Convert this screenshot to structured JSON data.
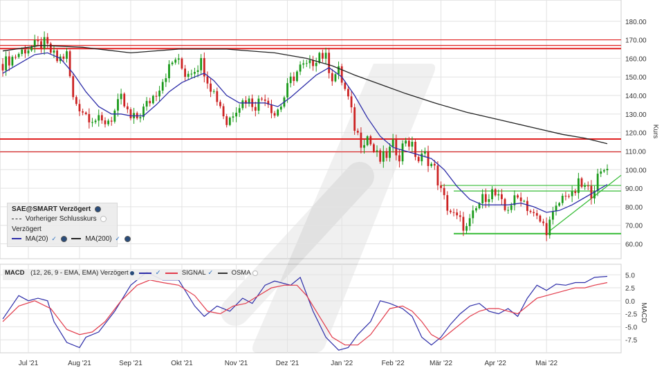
{
  "chart_data": [
    {
      "type": "candlestick",
      "title": "SAE@SMART Verzögert",
      "ylabel": "Kurs",
      "ylim": [
        52,
        187
      ],
      "yticks": [
        "180.00",
        "170.00",
        "160.00",
        "150.00",
        "140.00",
        "130.00",
        "120.00",
        "110.00",
        "100.00",
        "90.00",
        "80.00",
        "70.00",
        "60.00"
      ],
      "x_labels": [
        "Jul '21",
        "Aug '21",
        "Sep '21",
        "Okt '21",
        "Nov '21",
        "Dez '21",
        "Jan '22",
        "Feb '22",
        "Mär '22",
        "Apr '22",
        "Mai '22"
      ],
      "close_path": [
        [
          0,
          157
        ],
        [
          7,
          165
        ],
        [
          13,
          168
        ],
        [
          17,
          159
        ],
        [
          20,
          162
        ],
        [
          22,
          138
        ],
        [
          26,
          130
        ],
        [
          31,
          125
        ],
        [
          34,
          128
        ],
        [
          37,
          138
        ],
        [
          40,
          127
        ],
        [
          42,
          128
        ],
        [
          45,
          135
        ],
        [
          48,
          142
        ],
        [
          51,
          152
        ],
        [
          54,
          160
        ],
        [
          57,
          152
        ],
        [
          60,
          155
        ],
        [
          62,
          158
        ],
        [
          65,
          145
        ],
        [
          68,
          135
        ],
        [
          70,
          125
        ],
        [
          73,
          134
        ],
        [
          76,
          138
        ],
        [
          79,
          135
        ],
        [
          82,
          140
        ],
        [
          85,
          130
        ],
        [
          87,
          135
        ],
        [
          90,
          148
        ],
        [
          93,
          155
        ],
        [
          96,
          156
        ],
        [
          99,
          163
        ],
        [
          101,
          160
        ],
        [
          103,
          150
        ],
        [
          105,
          153
        ],
        [
          108,
          138
        ],
        [
          110,
          123
        ],
        [
          112,
          115
        ],
        [
          114,
          118
        ],
        [
          116,
          110
        ],
        [
          118,
          105
        ],
        [
          120,
          108
        ],
        [
          122,
          113
        ],
        [
          124,
          108
        ],
        [
          126,
          117
        ],
        [
          128,
          112
        ],
        [
          130,
          105
        ],
        [
          132,
          108
        ],
        [
          135,
          100
        ],
        [
          137,
          88
        ],
        [
          139,
          80
        ],
        [
          141,
          75
        ],
        [
          143,
          72
        ],
        [
          145,
          68
        ],
        [
          147,
          75
        ],
        [
          149,
          82
        ],
        [
          151,
          86
        ],
        [
          153,
          88
        ],
        [
          155,
          84
        ],
        [
          157,
          78
        ],
        [
          159,
          82
        ],
        [
          162,
          86
        ],
        [
          164,
          80
        ],
        [
          166,
          75
        ],
        [
          168,
          72
        ],
        [
          170,
          68
        ],
        [
          172,
          75
        ],
        [
          174,
          82
        ],
        [
          176,
          88
        ],
        [
          178,
          85
        ],
        [
          180,
          92
        ],
        [
          182,
          90
        ],
        [
          184,
          88
        ],
        [
          186,
          95
        ],
        [
          188,
          100
        ],
        [
          189,
          103
        ]
      ],
      "series": [
        {
          "name": "MA(20)",
          "color": "#2c2ca8",
          "points": [
            [
              0,
              152
            ],
            [
              5,
              157
            ],
            [
              10,
              162
            ],
            [
              14,
              163
            ],
            [
              18,
              160
            ],
            [
              22,
              152
            ],
            [
              26,
              142
            ],
            [
              30,
              134
            ],
            [
              34,
              130
            ],
            [
              37,
              130
            ],
            [
              40,
              129
            ],
            [
              44,
              129
            ],
            [
              48,
              135
            ],
            [
              52,
              142
            ],
            [
              56,
              147
            ],
            [
              60,
              150
            ],
            [
              63,
              152
            ],
            [
              66,
              148
            ],
            [
              70,
              140
            ],
            [
              74,
              136
            ],
            [
              78,
              136
            ],
            [
              82,
              136
            ],
            [
              86,
              134
            ],
            [
              90,
              139
            ],
            [
              94,
              145
            ],
            [
              98,
              151
            ],
            [
              102,
              155
            ],
            [
              106,
              150
            ],
            [
              110,
              140
            ],
            [
              114,
              128
            ],
            [
              118,
              118
            ],
            [
              122,
              112
            ],
            [
              126,
              110
            ],
            [
              130,
              108
            ],
            [
              134,
              106
            ],
            [
              138,
              100
            ],
            [
              142,
              91
            ],
            [
              146,
              84
            ],
            [
              150,
              81
            ],
            [
              154,
              81
            ],
            [
              158,
              81
            ],
            [
              162,
              82
            ],
            [
              166,
              80
            ],
            [
              170,
              77
            ],
            [
              174,
              78
            ],
            [
              178,
              81
            ],
            [
              182,
              85
            ],
            [
              186,
              89
            ],
            [
              189,
              92
            ]
          ]
        },
        {
          "name": "MA(200)",
          "color": "#222222",
          "points": [
            [
              0,
              164
            ],
            [
              12,
              167
            ],
            [
              25,
              166
            ],
            [
              40,
              163
            ],
            [
              55,
              165
            ],
            [
              70,
              165
            ],
            [
              85,
              163
            ],
            [
              95,
              160
            ],
            [
              103,
              156
            ],
            [
              110,
              151
            ],
            [
              118,
              146
            ],
            [
              126,
              141
            ],
            [
              135,
              136
            ],
            [
              145,
              131
            ],
            [
              155,
              127
            ],
            [
              165,
              123
            ],
            [
              175,
              119
            ],
            [
              182,
              117
            ],
            [
              189,
              114
            ]
          ]
        }
      ],
      "horizontal_levels": {
        "red": [
          170.0,
          167.0,
          165.3,
          116.5,
          109.6
        ],
        "green": [
          91.5,
          88.5,
          65.5
        ]
      }
    },
    {
      "type": "line",
      "title": "MACD",
      "params": "(12, 26, 9 - EMA, EMA) Verzögert",
      "ylabel": "MACD",
      "ylim": [
        -10.0,
        6.5
      ],
      "yticks": [
        "5.0",
        "2.5",
        "0.0",
        "-2.5",
        "-5.0",
        "-7.5"
      ],
      "series": [
        {
          "name": "MACD",
          "color": "#2c2ca8",
          "points": [
            [
              0,
              -3.5
            ],
            [
              5,
              1.0
            ],
            [
              8,
              0.0
            ],
            [
              11,
              0.5
            ],
            [
              14,
              0.0
            ],
            [
              16,
              -4.0
            ],
            [
              20,
              -8.0
            ],
            [
              24,
              -9.0
            ],
            [
              26,
              -7.0
            ],
            [
              30,
              -6.0
            ],
            [
              35,
              -2.0
            ],
            [
              40,
              3.0
            ],
            [
              45,
              5.5
            ],
            [
              50,
              4.0
            ],
            [
              55,
              4.0
            ],
            [
              60,
              -1.0
            ],
            [
              63,
              -3.0
            ],
            [
              67,
              -1.0
            ],
            [
              71,
              -2.0
            ],
            [
              75,
              0.5
            ],
            [
              78,
              -0.5
            ],
            [
              82,
              3.0
            ],
            [
              85,
              3.8
            ],
            [
              90,
              3.0
            ],
            [
              93,
              4.5
            ],
            [
              97,
              -2.0
            ],
            [
              101,
              -7.0
            ],
            [
              105,
              -9.5
            ],
            [
              108,
              -9.0
            ],
            [
              111,
              -6.5
            ],
            [
              115,
              -4.0
            ],
            [
              118,
              0.0
            ],
            [
              121,
              -0.5
            ],
            [
              125,
              -1.5
            ],
            [
              128,
              -3.0
            ],
            [
              131,
              -7.0
            ],
            [
              134,
              -8.5
            ],
            [
              137,
              -7.0
            ],
            [
              140,
              -4.5
            ],
            [
              143,
              -2.5
            ],
            [
              146,
              -1.0
            ],
            [
              149,
              -0.5
            ],
            [
              152,
              -2.0
            ],
            [
              155,
              -2.5
            ],
            [
              158,
              -1.5
            ],
            [
              161,
              -3.0
            ],
            [
              164,
              0.5
            ],
            [
              167,
              3.0
            ],
            [
              170,
              2.0
            ],
            [
              173,
              3.2
            ],
            [
              176,
              3.0
            ],
            [
              179,
              3.5
            ],
            [
              182,
              3.5
            ],
            [
              185,
              4.5
            ],
            [
              189,
              4.7
            ]
          ]
        },
        {
          "name": "SIGNAL",
          "color": "#e23a4a",
          "points": [
            [
              0,
              -4.0
            ],
            [
              5,
              -1.0
            ],
            [
              10,
              0.0
            ],
            [
              15,
              -1.5
            ],
            [
              20,
              -5.5
            ],
            [
              24,
              -6.5
            ],
            [
              28,
              -6.0
            ],
            [
              32,
              -4.0
            ],
            [
              37,
              0.0
            ],
            [
              42,
              3.0
            ],
            [
              46,
              4.0
            ],
            [
              50,
              3.5
            ],
            [
              55,
              3.0
            ],
            [
              60,
              1.0
            ],
            [
              64,
              -2.0
            ],
            [
              68,
              -2.5
            ],
            [
              72,
              -1.0
            ],
            [
              76,
              -0.5
            ],
            [
              80,
              1.0
            ],
            [
              84,
              2.5
            ],
            [
              88,
              3.0
            ],
            [
              92,
              3.0
            ],
            [
              95,
              1.0
            ],
            [
              99,
              -3.0
            ],
            [
              103,
              -7.0
            ],
            [
              107,
              -8.5
            ],
            [
              111,
              -8.5
            ],
            [
              115,
              -6.5
            ],
            [
              118,
              -4.0
            ],
            [
              121,
              -1.5
            ],
            [
              125,
              -1.0
            ],
            [
              128,
              -2.0
            ],
            [
              131,
              -4.0
            ],
            [
              134,
              -6.5
            ],
            [
              137,
              -7.5
            ],
            [
              140,
              -6.0
            ],
            [
              143,
              -4.5
            ],
            [
              146,
              -3.0
            ],
            [
              149,
              -2.0
            ],
            [
              152,
              -1.5
            ],
            [
              155,
              -1.5
            ],
            [
              158,
              -2.0
            ],
            [
              161,
              -2.5
            ],
            [
              164,
              -1.0
            ],
            [
              167,
              0.5
            ],
            [
              170,
              1.0
            ],
            [
              173,
              1.5
            ],
            [
              176,
              2.0
            ],
            [
              179,
              2.5
            ],
            [
              182,
              2.5
            ],
            [
              185,
              3.0
            ],
            [
              189,
              3.5
            ]
          ]
        },
        {
          "name": "OSMA",
          "color": "#222222",
          "points": []
        }
      ]
    }
  ],
  "legend": {
    "title": "SAE@SMART Verzögert",
    "prev_close": "Vorheriger Schlusskurs",
    "delayed": "Verzögert",
    "ma20": "MA(20)",
    "ma200": "MA(200)"
  },
  "macd_legend": {
    "title": "MACD",
    "params": "(12, 26, 9 - EMA, EMA) Verzögert",
    "signal": "SIGNAL",
    "osma": "OSMA"
  },
  "colors": {
    "up_candle": "#1a9a1a",
    "down_candle": "#cc2222",
    "resistance": "#e02020",
    "support": "#33bb33",
    "grid": "#e2e2e2"
  }
}
